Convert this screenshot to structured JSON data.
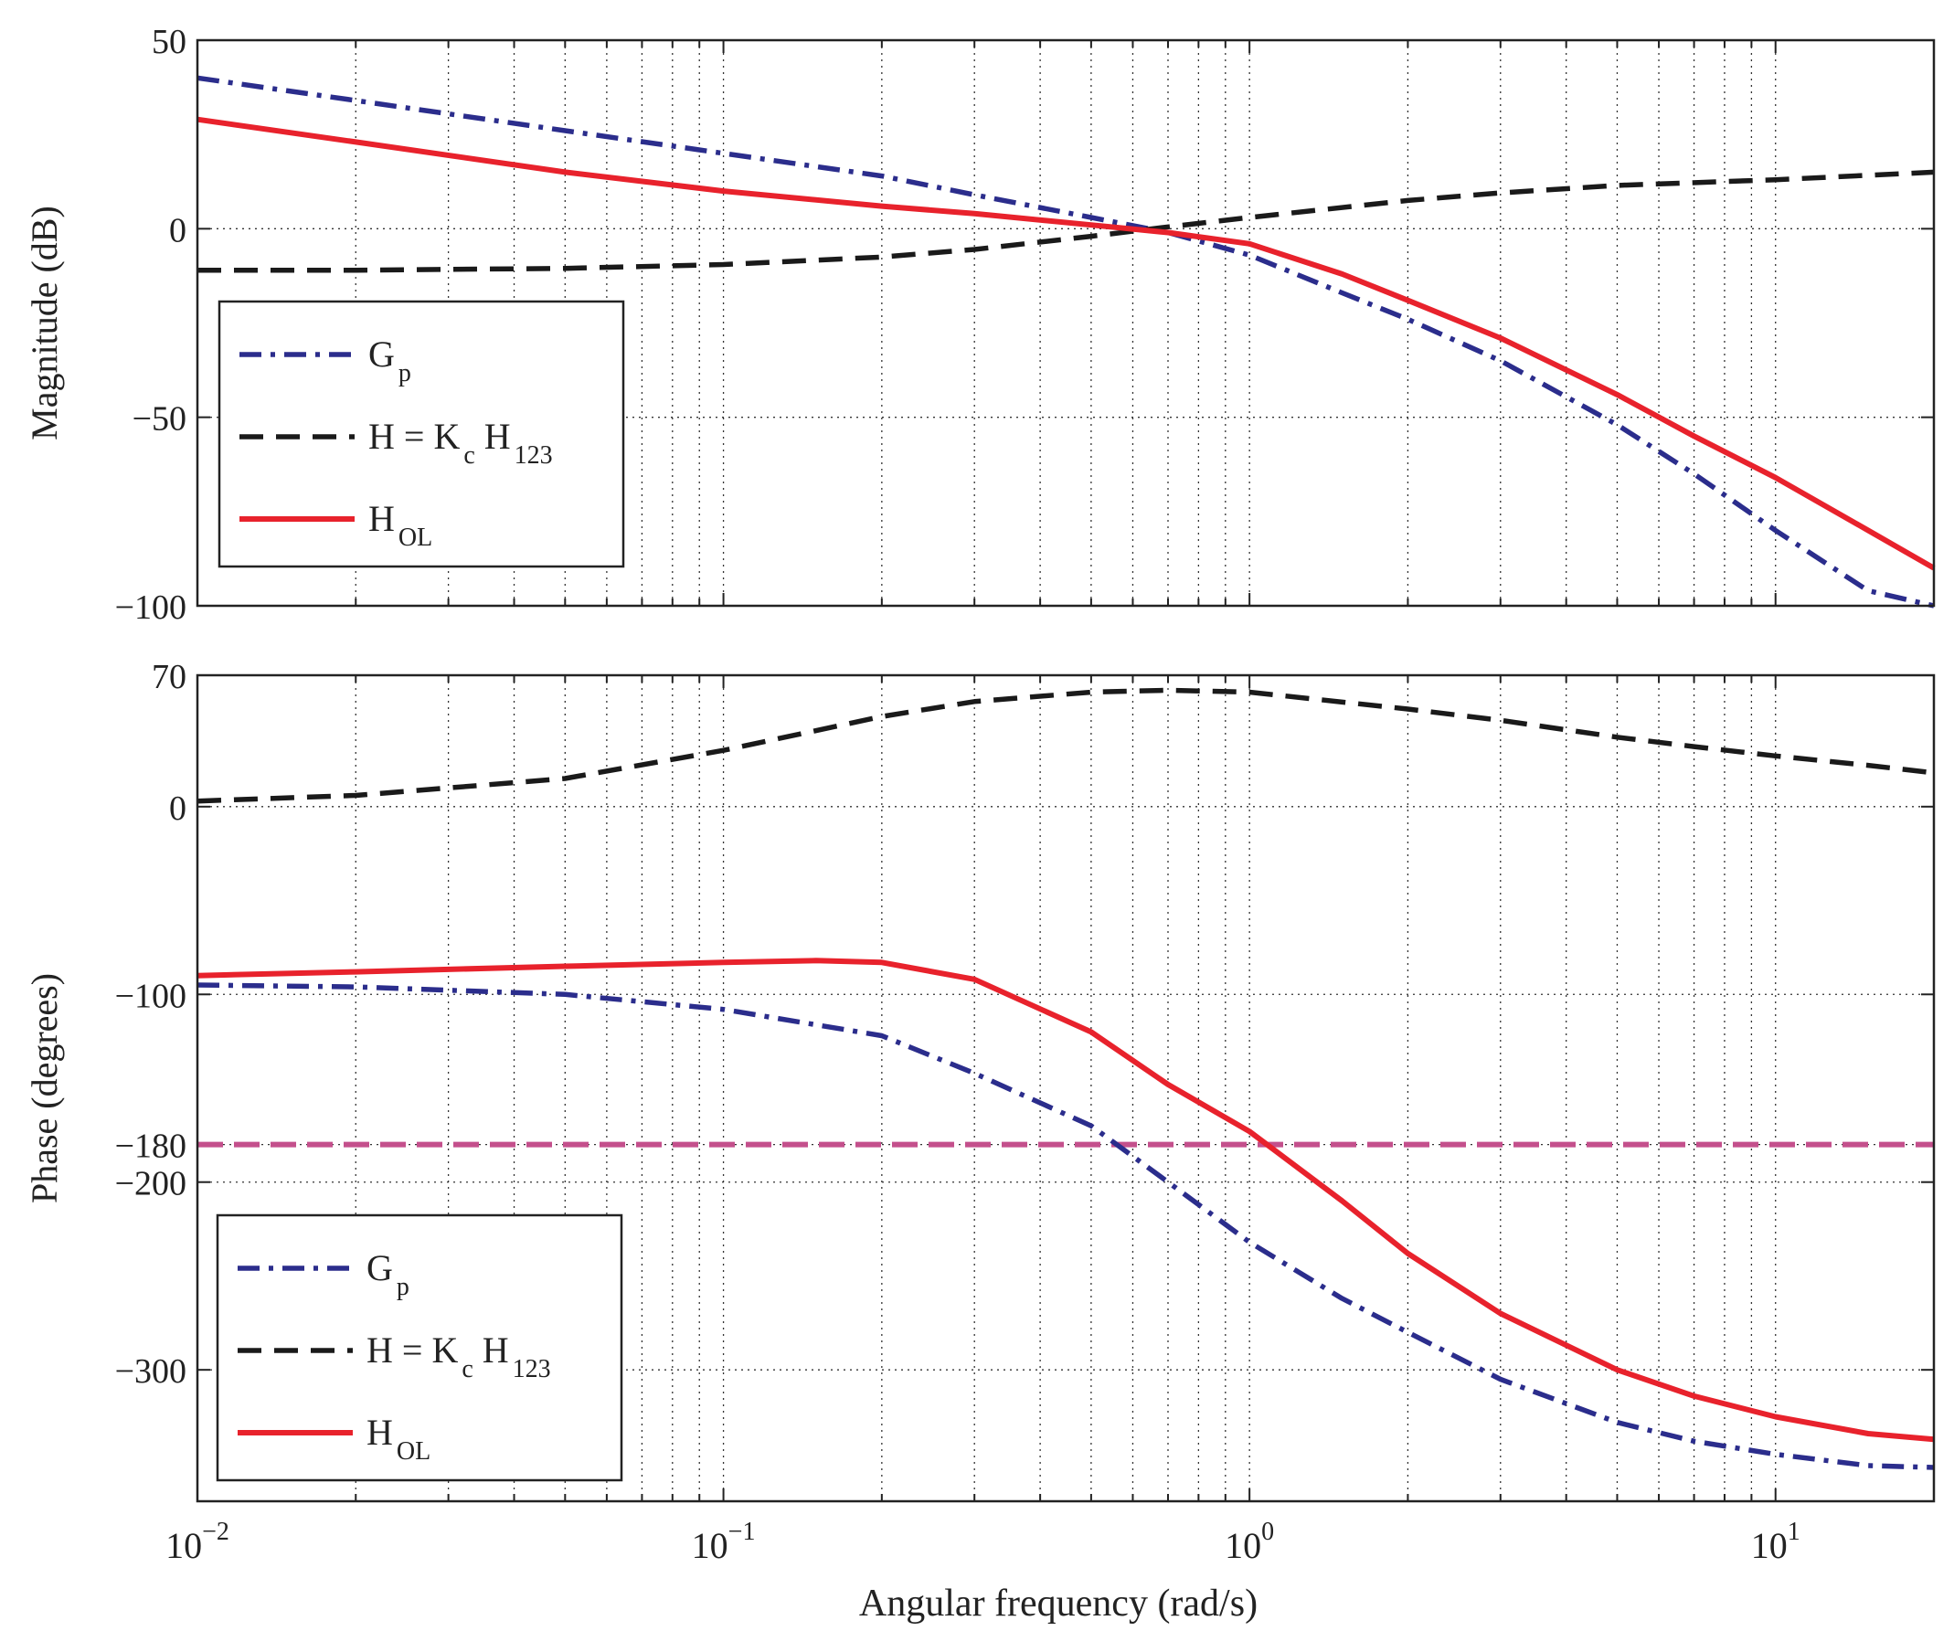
{
  "figure": {
    "xlabel": "Angular frequency (rad/s)",
    "tick_base": "10"
  },
  "chart_data": [
    {
      "type": "line",
      "name": "magnitude",
      "ylabel": "Magnitude (dB)",
      "xscale": "log",
      "xlim": [
        0.01,
        20
      ],
      "ylim": [
        -100,
        50
      ],
      "yticks": [
        50,
        0,
        -50,
        -100
      ],
      "ytick_labels": [
        "50",
        "0",
        "−50",
        "−100"
      ],
      "grid": true,
      "legend_position": "lower-left",
      "series": [
        {
          "name": "Gp",
          "legend_main": "G",
          "legend_sub": "p",
          "color": "#2b2d8c",
          "style": "dashdot",
          "x": [
            0.01,
            0.02,
            0.05,
            0.1,
            0.2,
            0.3,
            0.5,
            0.7,
            1,
            1.5,
            2,
            3,
            5,
            7,
            10,
            15,
            20
          ],
          "y": [
            40,
            34,
            26,
            20,
            14,
            9,
            3,
            -1,
            -7,
            -17,
            -24,
            -35,
            -52,
            -65,
            -80,
            -96,
            -100
          ]
        },
        {
          "name": "H = Kc H123",
          "legend_main": "H = K",
          "legend_sub": "c",
          "legend_main2": " H",
          "legend_sub2": "123",
          "color": "#1a1a1a",
          "style": "dashed",
          "x": [
            0.01,
            0.02,
            0.05,
            0.1,
            0.2,
            0.3,
            0.5,
            0.7,
            1,
            2,
            3,
            5,
            10,
            20
          ],
          "y": [
            -11,
            -11,
            -10.5,
            -9.5,
            -7.5,
            -5.5,
            -2,
            0.5,
            3,
            7.5,
            9.5,
            11.5,
            13,
            15
          ]
        },
        {
          "name": "HOL",
          "legend_main": "H",
          "legend_sub": "OL",
          "color": "#e8222c",
          "style": "solid",
          "x": [
            0.01,
            0.02,
            0.05,
            0.1,
            0.2,
            0.3,
            0.5,
            0.7,
            1,
            1.5,
            2,
            3,
            5,
            7,
            10,
            15,
            20
          ],
          "y": [
            29,
            23,
            15,
            10,
            6,
            4,
            1,
            -1,
            -4,
            -12,
            -19,
            -29,
            -44,
            -55,
            -66,
            -80,
            -90
          ]
        }
      ]
    },
    {
      "type": "line",
      "name": "phase",
      "ylabel": "Phase (degrees)",
      "xscale": "log",
      "xlim": [
        0.01,
        20
      ],
      "ylim": [
        -370,
        70
      ],
      "yticks": [
        70,
        0,
        -100,
        -180,
        -200,
        -300
      ],
      "ytick_labels": [
        "70",
        "0",
        "−100",
        "−180",
        "−200",
        "−300"
      ],
      "grid": true,
      "legend_position": "lower-left",
      "reference_line": {
        "value": -180,
        "color": "#c4508c"
      },
      "series": [
        {
          "name": "Gp",
          "legend_main": "G",
          "legend_sub": "p",
          "color": "#2b2d8c",
          "style": "dashdot",
          "x": [
            0.01,
            0.02,
            0.05,
            0.1,
            0.2,
            0.3,
            0.5,
            0.7,
            1,
            1.5,
            2,
            3,
            5,
            7,
            10,
            15,
            20
          ],
          "y": [
            -95,
            -96,
            -100,
            -108,
            -122,
            -142,
            -170,
            -200,
            -232,
            -262,
            -280,
            -305,
            -328,
            -338,
            -345,
            -351,
            -352
          ]
        },
        {
          "name": "H = Kc H123",
          "legend_main": "H = K",
          "legend_sub": "c",
          "legend_main2": " H",
          "legend_sub2": "123",
          "color": "#1a1a1a",
          "style": "dashed",
          "x": [
            0.01,
            0.02,
            0.05,
            0.1,
            0.2,
            0.3,
            0.5,
            0.7,
            1,
            2,
            3,
            5,
            7,
            10,
            15,
            20
          ],
          "y": [
            3,
            6,
            15,
            30,
            48,
            56,
            61,
            62,
            61,
            52,
            46,
            37,
            32,
            27,
            22,
            18
          ]
        },
        {
          "name": "HOL",
          "legend_main": "H",
          "legend_sub": "OL",
          "color": "#e8222c",
          "style": "solid",
          "x": [
            0.01,
            0.02,
            0.05,
            0.1,
            0.15,
            0.2,
            0.3,
            0.5,
            0.7,
            1,
            1.5,
            2,
            3,
            5,
            7,
            10,
            15,
            20
          ],
          "y": [
            -90,
            -88,
            -85,
            -83,
            -82,
            -83,
            -92,
            -120,
            -148,
            -173,
            -210,
            -238,
            -270,
            -300,
            -314,
            -325,
            -334,
            -337
          ]
        }
      ]
    }
  ]
}
